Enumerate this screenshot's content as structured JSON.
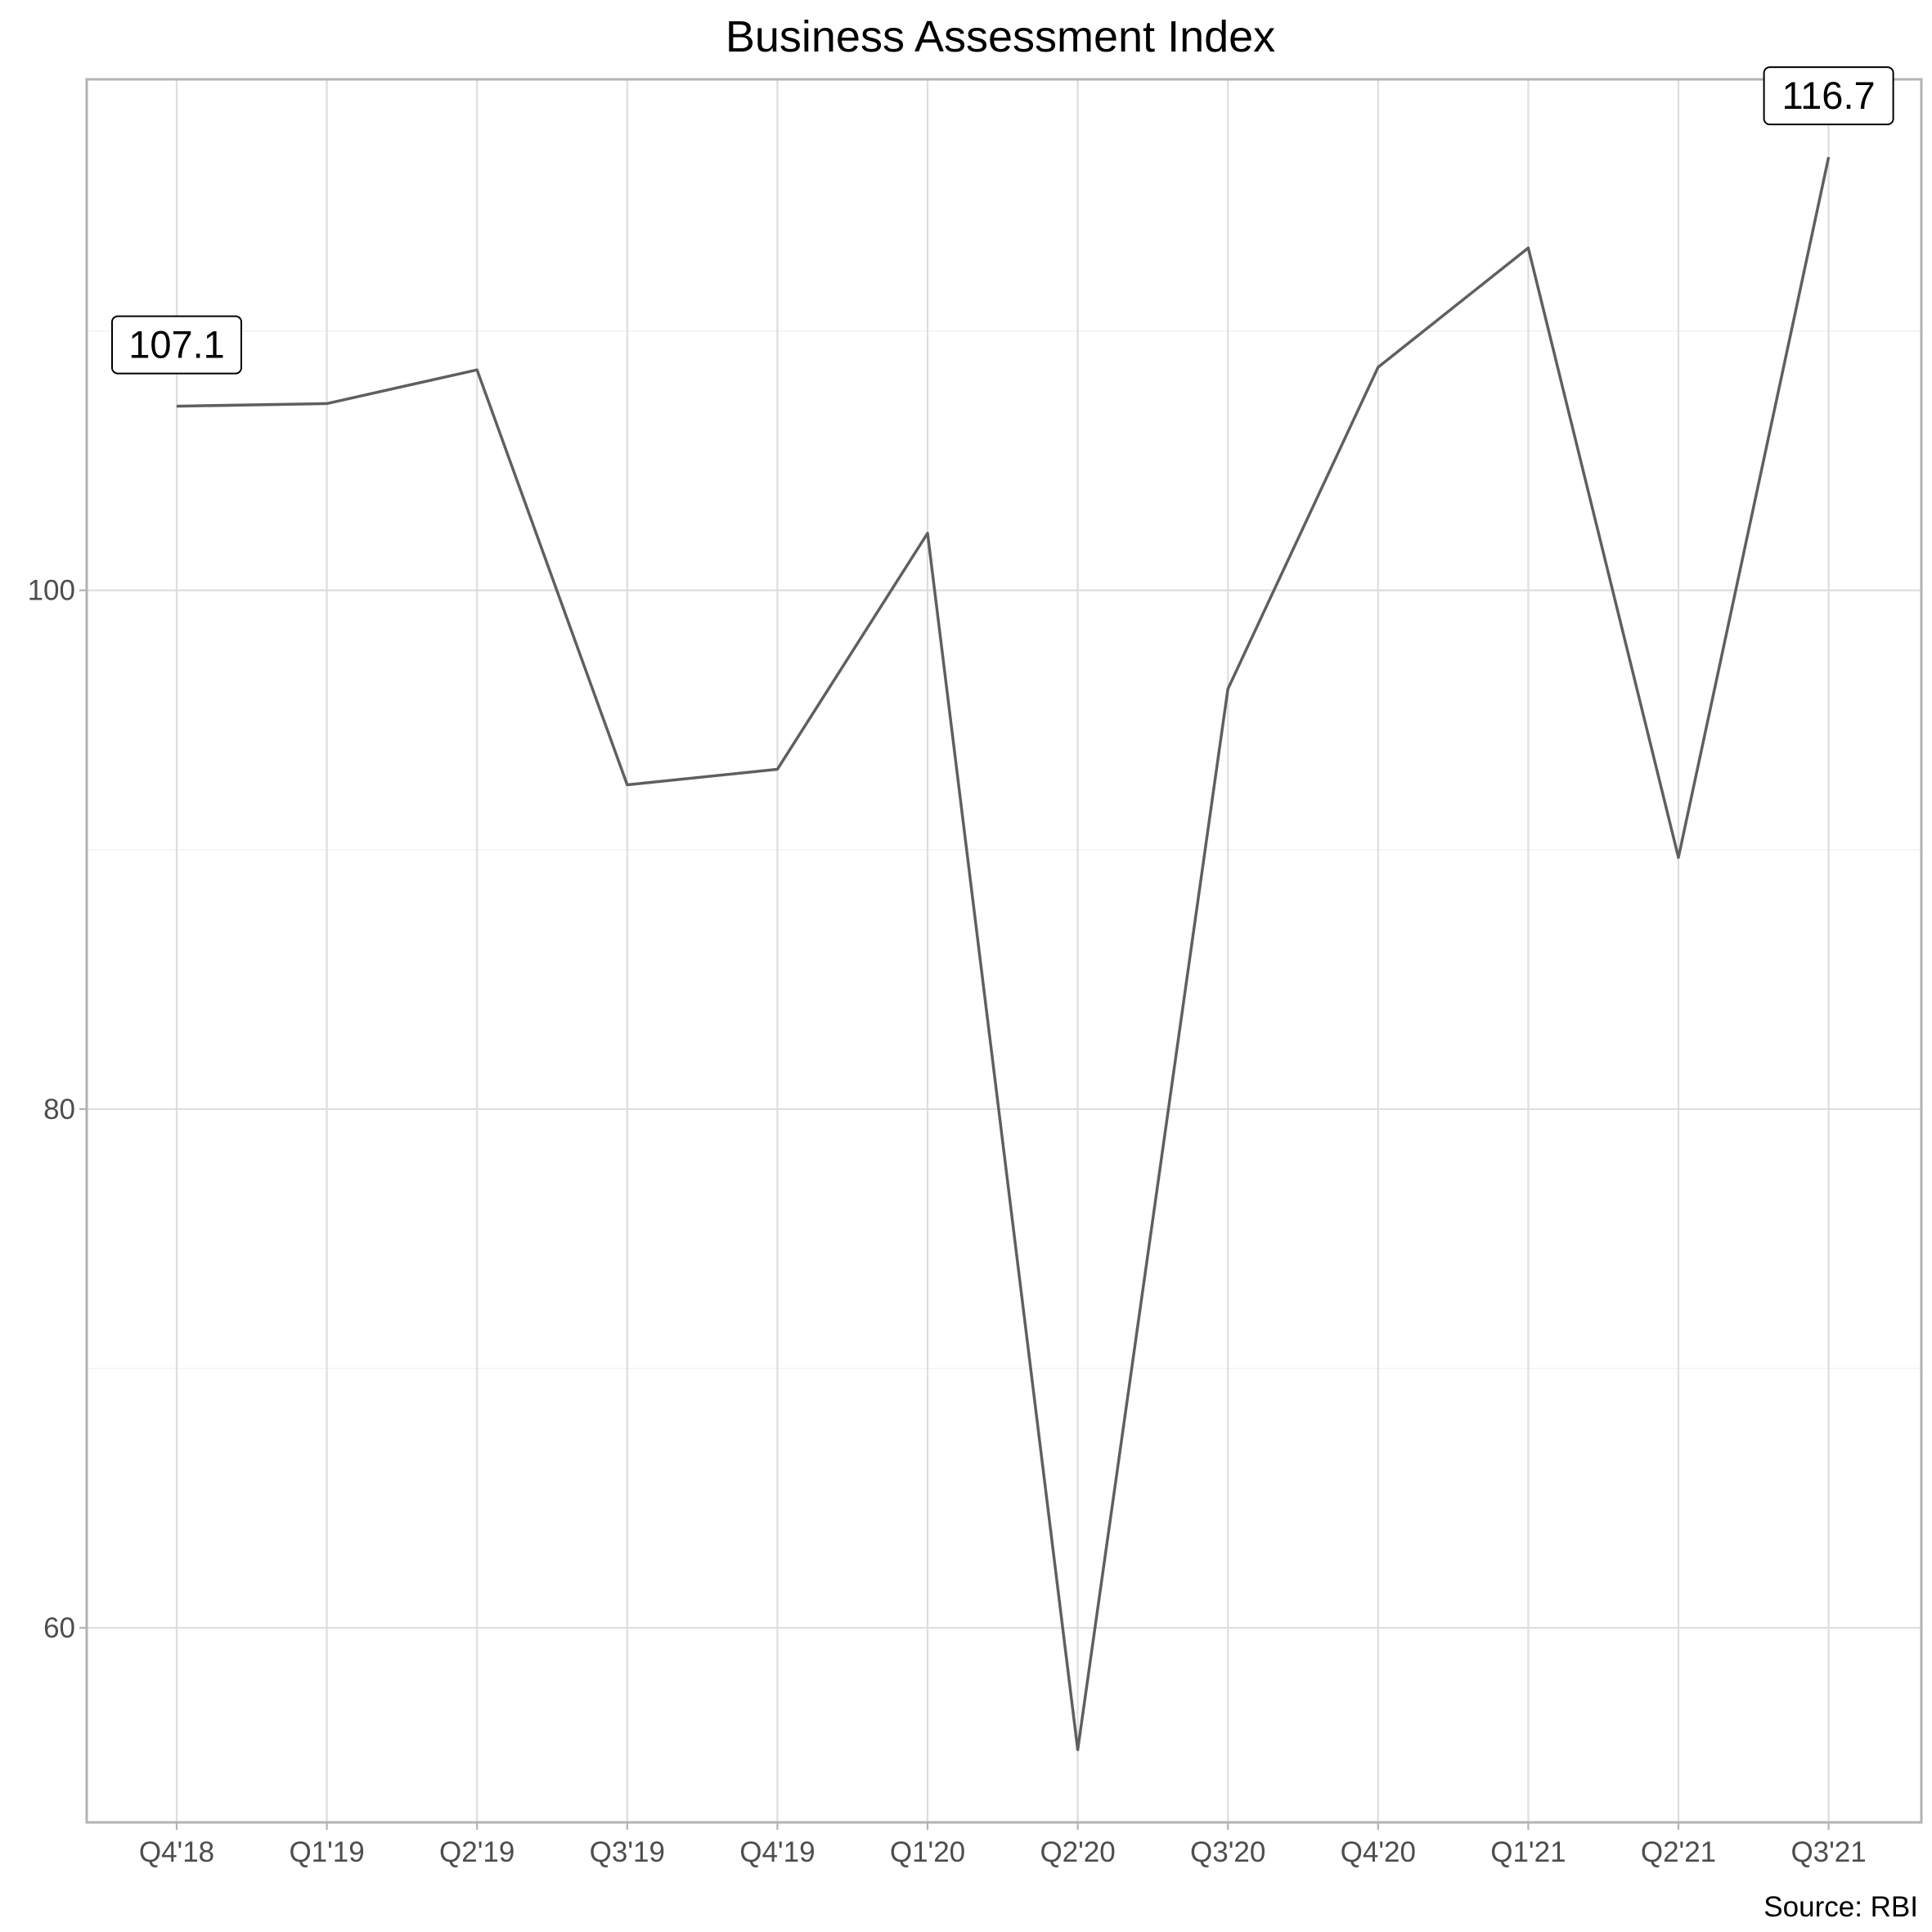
{
  "chart_data": {
    "type": "line",
    "title": "Business Assessment Index",
    "caption": "Source: RBI",
    "xlabel": "",
    "ylabel": "",
    "categories": [
      "Q4'18",
      "Q1'19",
      "Q2'19",
      "Q3'19",
      "Q4'19",
      "Q1'20",
      "Q2'20",
      "Q3'20",
      "Q4'20",
      "Q1'21",
      "Q2'21",
      "Q3'21"
    ],
    "series": [
      {
        "values": [
          107.1,
          107.2,
          108.5,
          92.5,
          93.1,
          102.2,
          55.3,
          96.2,
          108.6,
          113.2,
          89.7,
          116.7
        ],
        "color": "#5f5f5f"
      }
    ],
    "yticks": [
      60,
      80,
      100
    ],
    "ylim": [
      52.5,
      119.7
    ],
    "grid": true,
    "annotations": [
      {
        "category": "Q4'18",
        "text": "107.1"
      },
      {
        "category": "Q3'21",
        "text": "116.7"
      }
    ]
  }
}
